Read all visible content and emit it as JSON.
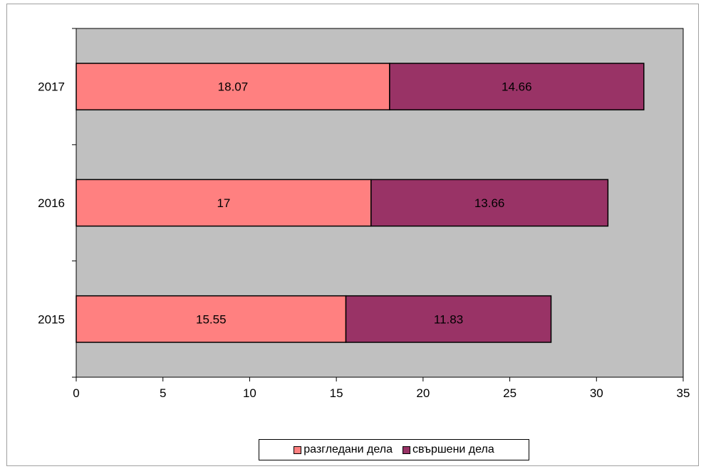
{
  "chart_data": {
    "type": "bar",
    "orientation": "horizontal",
    "stacked": true,
    "categories": [
      "2015",
      "2016",
      "2017"
    ],
    "series": [
      {
        "name": "разгледани дела",
        "values": [
          15.55,
          17,
          18.07
        ],
        "color": "#ff8080",
        "labels": [
          "15.55",
          "17",
          "18.07"
        ]
      },
      {
        "name": "свършени дела",
        "values": [
          11.83,
          13.66,
          14.66
        ],
        "color": "#993366",
        "labels": [
          "11.83",
          "13.66",
          "14.66"
        ]
      }
    ],
    "xlim": [
      0,
      35
    ],
    "xticks": [
      "0",
      "5",
      "10",
      "15",
      "20",
      "25",
      "30",
      "35"
    ],
    "plot_background": "#c0c0c0",
    "grid": false,
    "legend_position": "bottom"
  }
}
